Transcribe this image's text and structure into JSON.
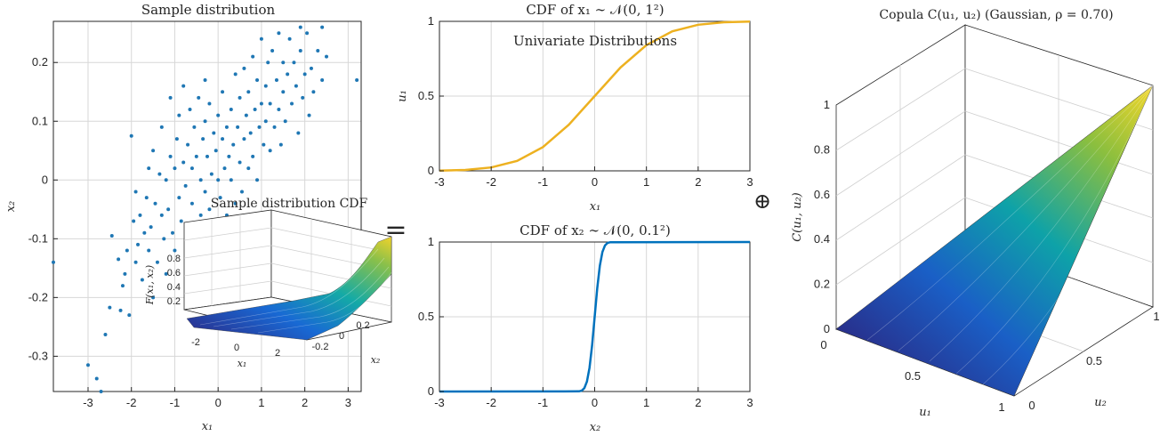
{
  "figure": {
    "equals_sign": "=",
    "oplus_sign": "⊕"
  },
  "chart_data": [
    {
      "id": "scatter",
      "type": "scatter",
      "title": "Sample distribution",
      "xlabel": "x₁",
      "ylabel": "x₂",
      "xlim": [
        -3.8,
        3.3
      ],
      "ylim": [
        -0.36,
        0.27
      ],
      "xticks": [
        -3,
        -2,
        -1,
        0,
        1,
        2,
        3
      ],
      "xtick_labels": [
        "-3",
        "-2",
        "-1",
        "0",
        "1",
        "2",
        "3"
      ],
      "yticks": [
        -0.3,
        -0.2,
        -0.1,
        0,
        0.1,
        0.2
      ],
      "ytick_labels": [
        "-0.3",
        "-0.2",
        "-0.1",
        "0",
        "0.1",
        "0.2"
      ],
      "grid": true,
      "color": "#1f77b4",
      "points": [
        [
          -3.0,
          -0.315
        ],
        [
          -2.8,
          -0.338
        ],
        [
          -2.7,
          -0.36
        ],
        [
          -2.6,
          -0.263
        ],
        [
          -2.5,
          -0.217
        ],
        [
          -2.45,
          -0.095
        ],
        [
          -2.3,
          -0.135
        ],
        [
          -2.25,
          -0.222
        ],
        [
          -2.2,
          -0.18
        ],
        [
          -2.15,
          -0.16
        ],
        [
          -2.1,
          -0.12
        ],
        [
          -2.05,
          -0.23
        ],
        [
          -2.0,
          0.075
        ],
        [
          -1.95,
          -0.07
        ],
        [
          -1.9,
          -0.14
        ],
        [
          -1.9,
          -0.02
        ],
        [
          -1.85,
          -0.11
        ],
        [
          -1.8,
          -0.06
        ],
        [
          -1.75,
          -0.17
        ],
        [
          -1.7,
          -0.09
        ],
        [
          -1.65,
          -0.03
        ],
        [
          -1.6,
          0.02
        ],
        [
          -1.6,
          -0.12
        ],
        [
          -1.55,
          -0.08
        ],
        [
          -1.5,
          -0.2
        ],
        [
          -1.5,
          0.05
        ],
        [
          -1.45,
          -0.04
        ],
        [
          -1.4,
          -0.14
        ],
        [
          -1.35,
          0.01
        ],
        [
          -1.3,
          -0.06
        ],
        [
          -1.3,
          0.09
        ],
        [
          -1.25,
          -0.1
        ],
        [
          -1.2,
          0.0
        ],
        [
          -1.2,
          -0.16
        ],
        [
          -1.15,
          -0.05
        ],
        [
          -1.1,
          0.04
        ],
        [
          -1.1,
          0.14
        ],
        [
          -1.05,
          -0.09
        ],
        [
          -1.0,
          0.02
        ],
        [
          -1.0,
          -0.12
        ],
        [
          -0.95,
          0.07
        ],
        [
          -0.9,
          -0.03
        ],
        [
          -0.9,
          0.11
        ],
        [
          -0.85,
          -0.07
        ],
        [
          -0.8,
          0.03
        ],
        [
          -0.8,
          0.16
        ],
        [
          -0.75,
          -0.01
        ],
        [
          -0.7,
          -0.1
        ],
        [
          -0.7,
          0.06
        ],
        [
          -0.65,
          0.12
        ],
        [
          -0.6,
          -0.04
        ],
        [
          -0.6,
          0.02
        ],
        [
          -0.55,
          0.09
        ],
        [
          -0.5,
          -0.08
        ],
        [
          -0.5,
          0.04
        ],
        [
          -0.45,
          0.14
        ],
        [
          -0.4,
          0.0
        ],
        [
          -0.4,
          -0.06
        ],
        [
          -0.35,
          0.07
        ],
        [
          -0.3,
          0.1
        ],
        [
          -0.3,
          -0.02
        ],
        [
          -0.25,
          0.04
        ],
        [
          -0.2,
          0.13
        ],
        [
          -0.2,
          -0.05
        ],
        [
          -0.15,
          0.01
        ],
        [
          -0.1,
          0.08
        ],
        [
          -0.1,
          -0.09
        ],
        [
          -0.05,
          0.05
        ],
        [
          0.0,
          0.0
        ],
        [
          0.0,
          0.11
        ],
        [
          0.05,
          -0.03
        ],
        [
          0.1,
          0.07
        ],
        [
          0.1,
          0.15
        ],
        [
          0.15,
          0.02
        ],
        [
          0.2,
          -0.06
        ],
        [
          0.2,
          0.09
        ],
        [
          0.25,
          0.04
        ],
        [
          0.3,
          0.12
        ],
        [
          0.3,
          0.0
        ],
        [
          0.35,
          0.06
        ],
        [
          0.4,
          0.18
        ],
        [
          0.4,
          -0.04
        ],
        [
          0.45,
          0.09
        ],
        [
          0.5,
          0.03
        ],
        [
          0.5,
          0.14
        ],
        [
          0.55,
          -0.02
        ],
        [
          0.6,
          0.07
        ],
        [
          0.6,
          0.19
        ],
        [
          0.65,
          0.11
        ],
        [
          0.7,
          0.02
        ],
        [
          0.7,
          0.15
        ],
        [
          0.75,
          0.08
        ],
        [
          0.8,
          0.21
        ],
        [
          0.8,
          0.04
        ],
        [
          0.85,
          0.12
        ],
        [
          0.9,
          0.0
        ],
        [
          0.9,
          0.17
        ],
        [
          0.95,
          0.09
        ],
        [
          1.0,
          0.13
        ],
        [
          1.0,
          0.24
        ],
        [
          1.05,
          0.06
        ],
        [
          1.1,
          0.16
        ],
        [
          1.1,
          0.1
        ],
        [
          1.15,
          0.2
        ],
        [
          1.2,
          0.05
        ],
        [
          1.2,
          0.13
        ],
        [
          1.25,
          0.22
        ],
        [
          1.3,
          0.09
        ],
        [
          1.35,
          0.17
        ],
        [
          1.4,
          0.12
        ],
        [
          1.4,
          0.25
        ],
        [
          1.45,
          0.06
        ],
        [
          1.5,
          0.15
        ],
        [
          1.5,
          0.2
        ],
        [
          1.55,
          0.1
        ],
        [
          1.6,
          0.18
        ],
        [
          1.65,
          0.24
        ],
        [
          1.7,
          0.13
        ],
        [
          1.75,
          0.2
        ],
        [
          1.8,
          0.16
        ],
        [
          1.85,
          0.08
        ],
        [
          1.9,
          0.22
        ],
        [
          1.95,
          0.14
        ],
        [
          2.0,
          0.18
        ],
        [
          2.05,
          0.25
        ],
        [
          2.1,
          0.11
        ],
        [
          2.15,
          0.19
        ],
        [
          2.2,
          0.15
        ],
        [
          2.3,
          0.22
        ],
        [
          2.4,
          0.17
        ],
        [
          2.5,
          0.21
        ],
        [
          3.2,
          0.17
        ],
        [
          -3.8,
          -0.14
        ],
        [
          2.4,
          0.26
        ],
        [
          1.9,
          0.26
        ],
        [
          -0.3,
          0.17
        ]
      ]
    },
    {
      "id": "cdf1",
      "type": "line",
      "title": "CDF of x₁ ∼ 𝒩(0, 1²)",
      "annotation": "Univariate Distributions",
      "xlabel": "x₁",
      "ylabel": "u₁",
      "xlim": [
        -3,
        3
      ],
      "ylim": [
        0,
        1
      ],
      "xticks": [
        -3,
        -2,
        -1,
        0,
        1,
        2,
        3
      ],
      "xtick_labels": [
        "-3",
        "-2",
        "-1",
        "0",
        "1",
        "2",
        "3"
      ],
      "yticks": [
        0,
        0.5,
        1
      ],
      "ytick_labels": [
        "0",
        "0.5",
        "1"
      ],
      "grid": true,
      "color": "#edb120",
      "x": [
        -3,
        -2.5,
        -2,
        -1.5,
        -1,
        -0.5,
        0,
        0.5,
        1,
        1.5,
        2,
        2.5,
        3
      ],
      "y": [
        0.0013,
        0.0062,
        0.0228,
        0.0668,
        0.1587,
        0.3085,
        0.5,
        0.6915,
        0.8413,
        0.9332,
        0.9772,
        0.9938,
        0.9987
      ]
    },
    {
      "id": "cdf2",
      "type": "line",
      "title": "CDF of x₂ ∼ 𝒩(0, 0.1²)",
      "xlabel": "x₂",
      "ylabel": "",
      "xlim": [
        -3,
        3
      ],
      "ylim": [
        0,
        1
      ],
      "xticks": [
        -3,
        -2,
        -1,
        0,
        1,
        2,
        3
      ],
      "xtick_labels": [
        "-3",
        "-2",
        "-1",
        "0",
        "1",
        "2",
        "3"
      ],
      "yticks": [
        0,
        0.5,
        1
      ],
      "ytick_labels": [
        "0",
        "0.5",
        "1"
      ],
      "grid": true,
      "color": "#0072bd",
      "x": [
        -3,
        -0.3,
        -0.25,
        -0.2,
        -0.15,
        -0.1,
        -0.05,
        0,
        0.05,
        0.1,
        0.15,
        0.2,
        0.25,
        0.3,
        3
      ],
      "y": [
        0,
        0.0013,
        0.0062,
        0.0228,
        0.0668,
        0.1587,
        0.3085,
        0.5,
        0.6915,
        0.8413,
        0.9332,
        0.9772,
        0.9938,
        0.9987,
        1
      ]
    },
    {
      "id": "joint_cdf_inset",
      "type": "surface",
      "title": "Sample distribution CDF",
      "xlabel": "x₁",
      "ylabel": "x₂",
      "zlabel": "F(x₁, x₂)",
      "xticks": [
        -2,
        0,
        2
      ],
      "xtick_labels": [
        "-2",
        "0",
        "2"
      ],
      "yticks": [
        -0.2,
        0,
        0.2
      ],
      "ytick_labels": [
        "-0.2",
        "0",
        "0.2"
      ],
      "zticks": [
        0.2,
        0.4,
        0.6,
        0.8
      ],
      "ztick_labels": [
        "0.2",
        "0.4",
        "0.6",
        "0.8"
      ],
      "colormap": "parula"
    },
    {
      "id": "copula",
      "type": "surface",
      "title": "Copula C(u₁, u₂) (Gaussian, ρ = 0.70)",
      "xlabel": "u₁",
      "ylabel": "u₂",
      "zlabel": "C(u₁, u₂)",
      "rho": 0.7,
      "xticks": [
        0,
        0.5,
        1
      ],
      "xtick_labels": [
        "0",
        "0.5",
        "1"
      ],
      "yticks": [
        0,
        0.5,
        1
      ],
      "ytick_labels": [
        "0",
        "0.5",
        "1"
      ],
      "zticks": [
        0,
        0.2,
        0.4,
        0.6,
        0.8,
        1
      ],
      "ztick_labels": [
        "0",
        "0.2",
        "0.4",
        "0.6",
        "0.8",
        "1"
      ],
      "colormap": "parula"
    }
  ]
}
